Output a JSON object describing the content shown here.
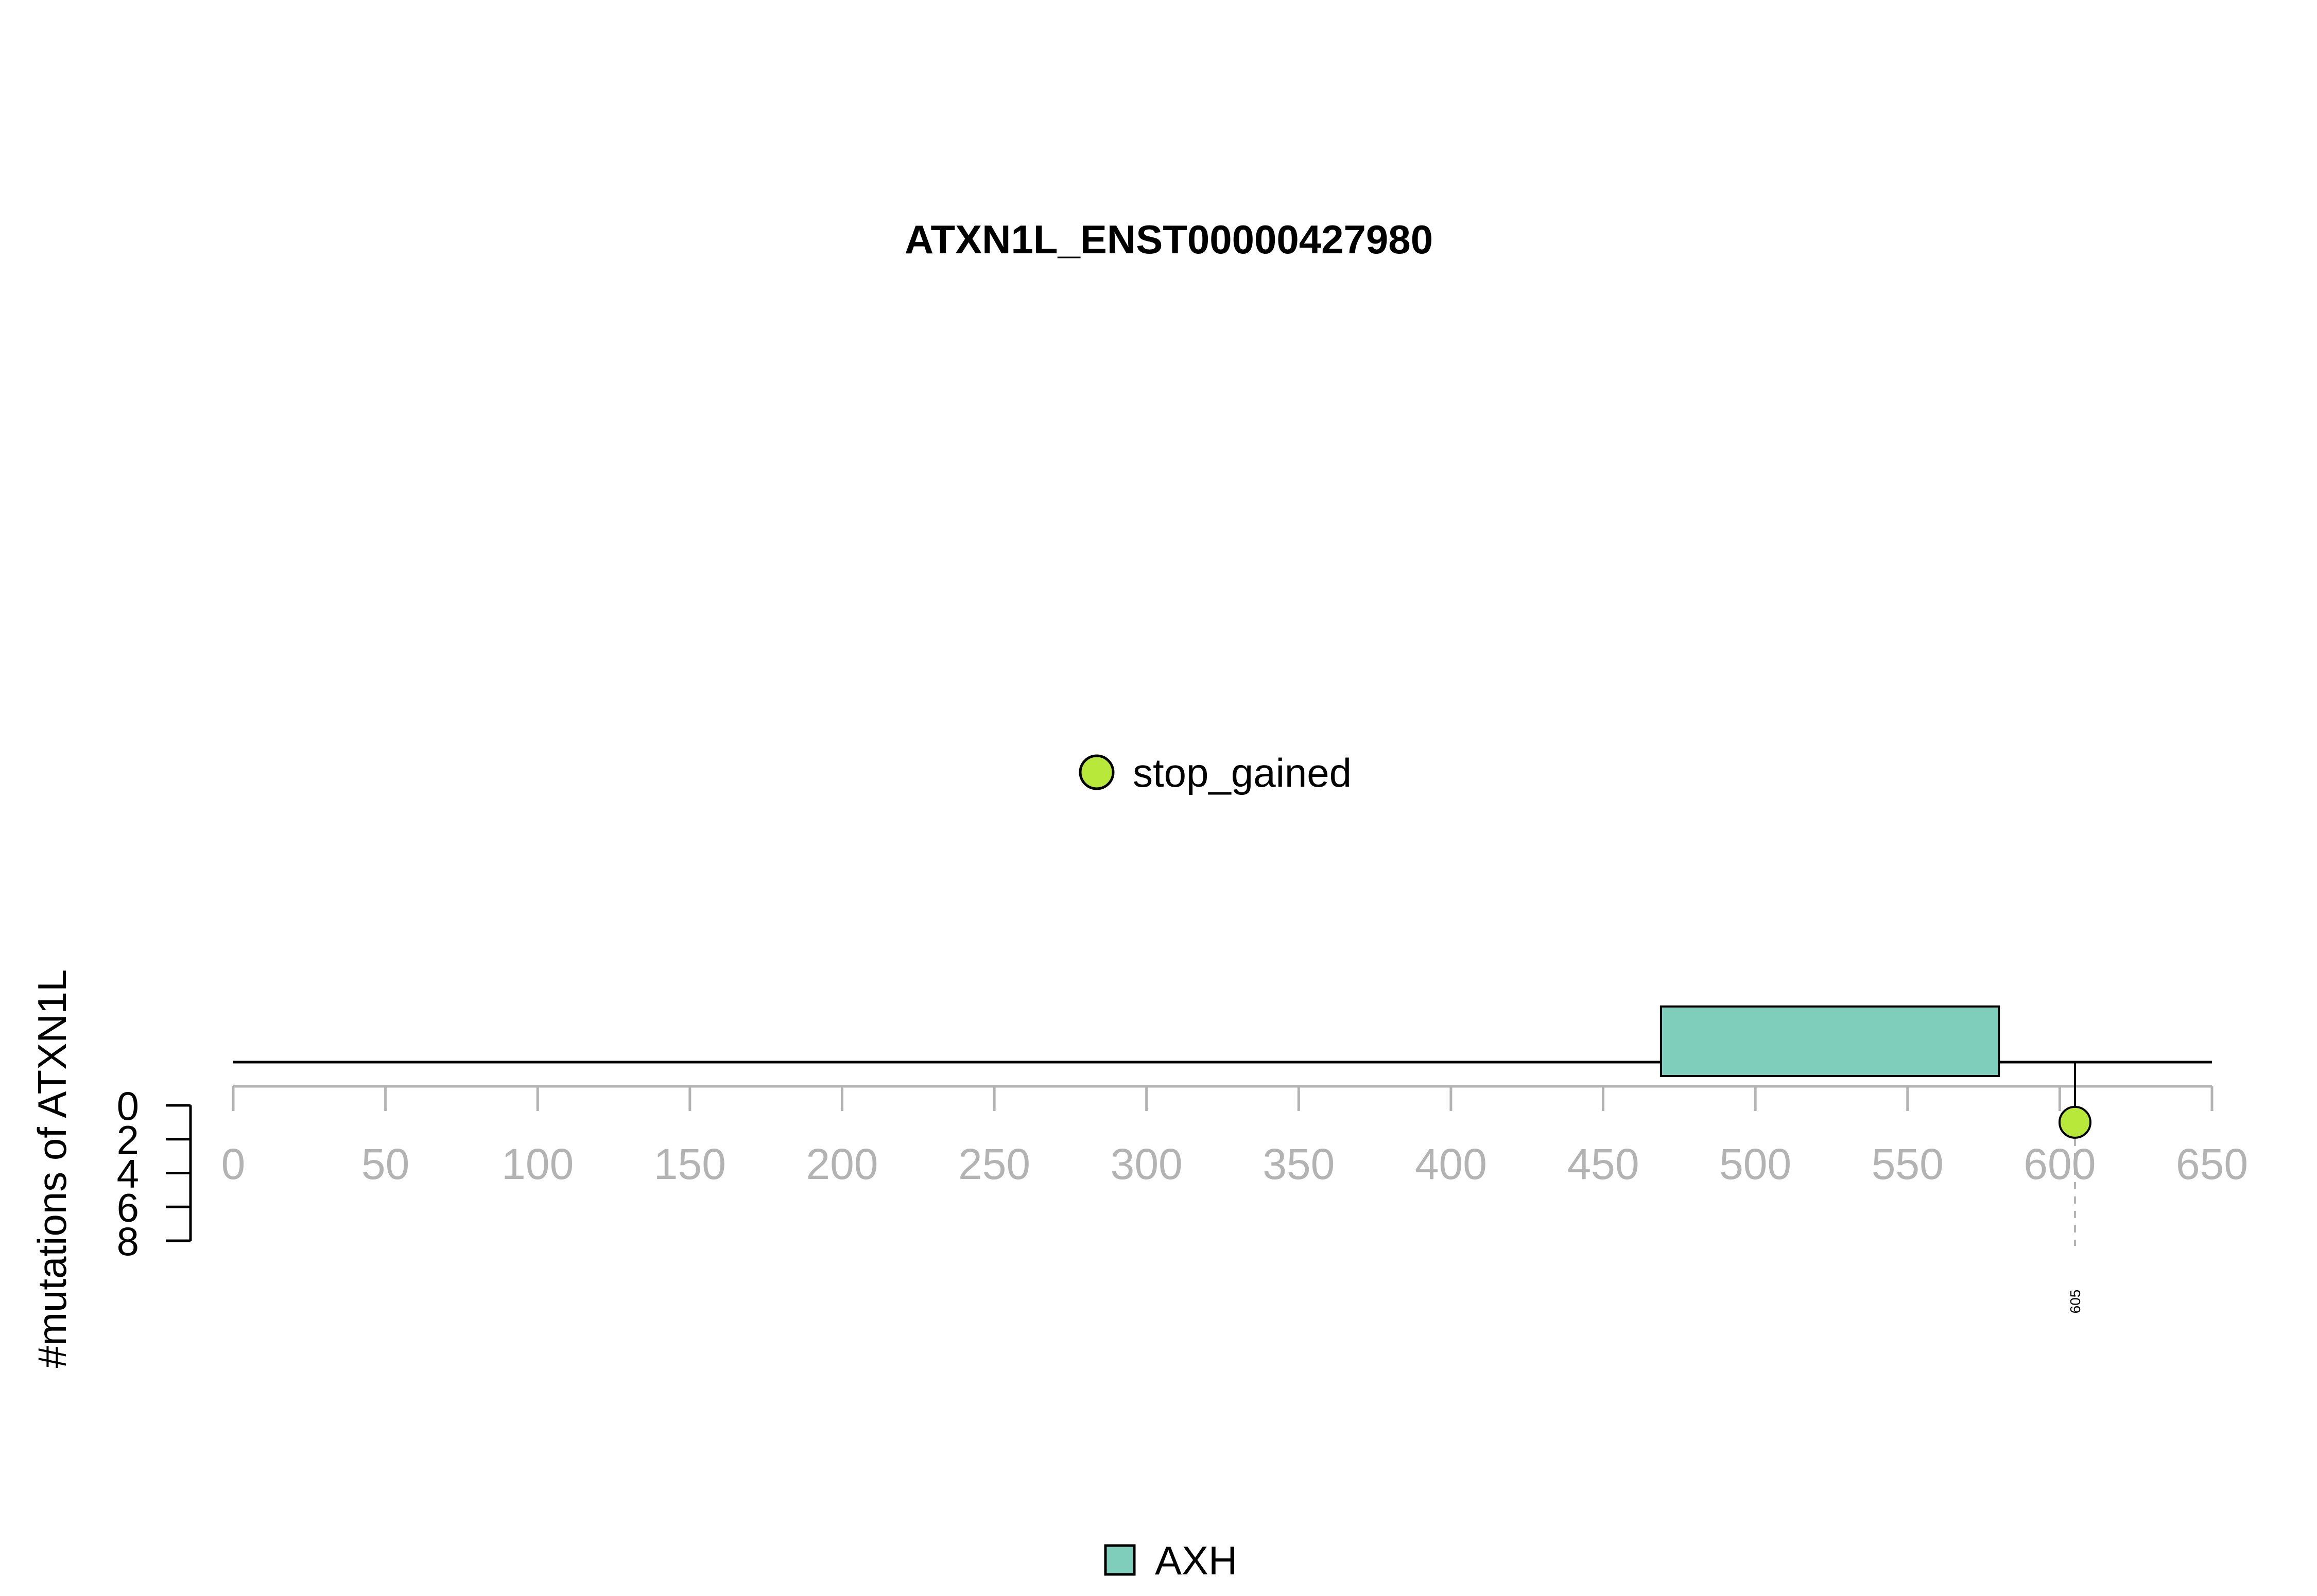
{
  "chart_data": {
    "type": "lollipop",
    "title": "ATXN1L_ENST00000427980",
    "ylabel": "#mutations of ATXN1L",
    "protein_length": 650,
    "x_range": [
      0,
      650
    ],
    "x_ticks": [
      0,
      50,
      100,
      150,
      200,
      250,
      300,
      350,
      400,
      450,
      500,
      550,
      600,
      650
    ],
    "y_range": [
      0,
      8
    ],
    "y_ticks": [
      0,
      2,
      4,
      6,
      8
    ],
    "domains": [
      {
        "name": "AXH",
        "start": 469,
        "end": 580,
        "color": "#7fcdbb"
      }
    ],
    "mutations": [
      {
        "position": 605,
        "count": 1,
        "type": "stop_gained",
        "label": "605",
        "color": "#b8e83a"
      }
    ],
    "legend_mutation_types": [
      {
        "name": "stop_gained",
        "color": "#b8e83a"
      }
    ],
    "legend_domains": [
      {
        "name": "AXH",
        "color": "#7fcdbb"
      }
    ]
  }
}
